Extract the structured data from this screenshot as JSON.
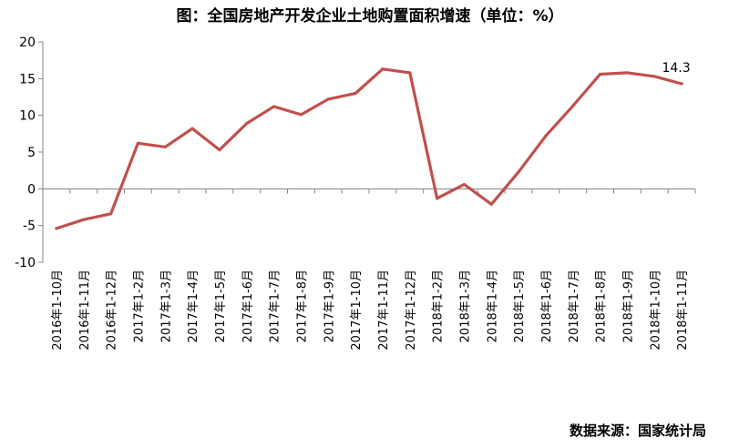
{
  "chart_data": {
    "type": "line",
    "title": "图：全国房地产开发企业土地购置面积增速（单位：%）",
    "source": "数据来源：国家统计局",
    "x": [
      "2016年1-10月",
      "2016年1-11月",
      "2016年1-12月",
      "2017年1-2月",
      "2017年1-3月",
      "2017年1-4月",
      "2017年1-5月",
      "2017年1-6月",
      "2017年1-7月",
      "2017年1-8月",
      "2017年1-9月",
      "2017年1-10月",
      "2017年1-11月",
      "2017年1-12月",
      "2018年1-2月",
      "2018年1-3月",
      "2018年1-4月",
      "2018年1-5月",
      "2018年1-6月",
      "2018年1-7月",
      "2018年1-8月",
      "2018年1-9月",
      "2018年1-10月",
      "2018年1-11月"
    ],
    "series": [
      {
        "values": [
          -5.4,
          -4.2,
          -3.4,
          6.2,
          5.7,
          8.2,
          5.3,
          8.9,
          11.2,
          10.1,
          12.2,
          13.0,
          16.3,
          15.8,
          -1.3,
          0.6,
          -2.1,
          2.3,
          7.2,
          11.3,
          15.6,
          15.8,
          15.3,
          14.3
        ]
      }
    ],
    "annotation": {
      "text": "14.3"
    },
    "ylim": [
      -10,
      20
    ],
    "yticks": [
      -10,
      -5,
      0,
      5,
      10,
      15,
      20
    ],
    "line_color": "#C0504D",
    "grid": false,
    "xlabel": "",
    "ylabel": ""
  }
}
